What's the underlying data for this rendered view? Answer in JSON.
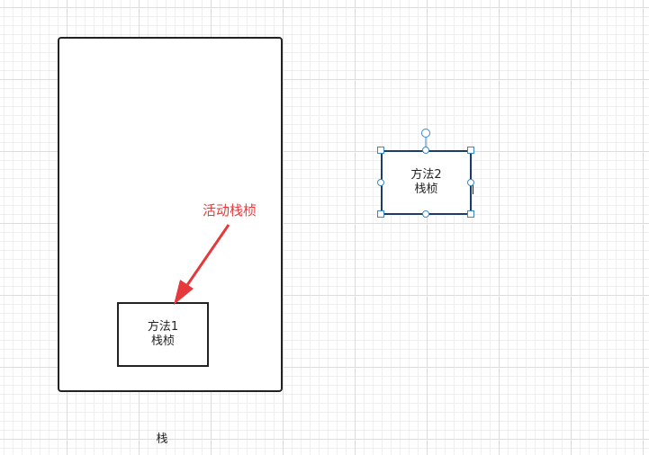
{
  "diagram": {
    "stack": {
      "label": "栈"
    },
    "frame1": {
      "line1": "方法1",
      "line2": "栈桢"
    },
    "frame2": {
      "line1": "方法2",
      "line2": "栈桢"
    },
    "annotation": {
      "text": "活动栈桢",
      "color": "#e5393b"
    }
  },
  "colors": {
    "selection": "#3a87c8",
    "border": "#222222",
    "selected_border": "#1a3e66"
  }
}
